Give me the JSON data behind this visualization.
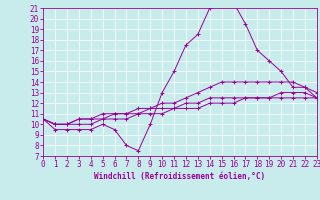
{
  "xlabel": "Windchill (Refroidissement éolien,°C)",
  "ylabel": "",
  "bg_color": "#c8ecec",
  "line_color": "#990099",
  "xmin": 0,
  "xmax": 23,
  "ymin": 7,
  "ymax": 21,
  "line1_x": [
    0,
    1,
    2,
    3,
    4,
    5,
    6,
    7,
    8,
    9,
    10,
    11,
    12,
    13,
    14,
    15,
    16,
    17,
    18,
    19,
    20,
    21,
    22,
    23
  ],
  "line1_y": [
    10.5,
    9.5,
    9.5,
    9.5,
    9.5,
    10.0,
    9.5,
    8.0,
    7.5,
    10.0,
    13.0,
    15.0,
    17.5,
    18.5,
    21.0,
    21.5,
    21.5,
    19.5,
    17.0,
    16.0,
    15.0,
    13.5,
    13.5,
    12.5
  ],
  "line2_x": [
    0,
    1,
    2,
    3,
    4,
    5,
    6,
    7,
    8,
    9,
    10,
    11,
    12,
    13,
    14,
    15,
    16,
    17,
    18,
    19,
    20,
    21,
    22,
    23
  ],
  "line2_y": [
    10.5,
    10.0,
    10.0,
    10.5,
    10.5,
    11.0,
    11.0,
    11.0,
    11.5,
    11.5,
    12.0,
    12.0,
    12.5,
    13.0,
    13.5,
    14.0,
    14.0,
    14.0,
    14.0,
    14.0,
    14.0,
    14.0,
    13.5,
    13.0
  ],
  "line3_x": [
    0,
    1,
    2,
    3,
    4,
    5,
    6,
    7,
    8,
    9,
    10,
    11,
    12,
    13,
    14,
    15,
    16,
    17,
    18,
    19,
    20,
    21,
    22,
    23
  ],
  "line3_y": [
    10.5,
    10.0,
    10.0,
    10.5,
    10.5,
    10.5,
    11.0,
    11.0,
    11.0,
    11.5,
    11.5,
    11.5,
    12.0,
    12.0,
    12.5,
    12.5,
    12.5,
    12.5,
    12.5,
    12.5,
    12.5,
    12.5,
    12.5,
    12.5
  ],
  "line4_x": [
    0,
    1,
    2,
    3,
    4,
    5,
    6,
    7,
    8,
    9,
    10,
    11,
    12,
    13,
    14,
    15,
    16,
    17,
    18,
    19,
    20,
    21,
    22,
    23
  ],
  "line4_y": [
    10.5,
    10.0,
    10.0,
    10.0,
    10.0,
    10.5,
    10.5,
    10.5,
    11.0,
    11.0,
    11.0,
    11.5,
    11.5,
    11.5,
    12.0,
    12.0,
    12.0,
    12.5,
    12.5,
    12.5,
    13.0,
    13.0,
    13.0,
    12.5
  ],
  "tick_fontsize": 5.5,
  "xlabel_fontsize": 5.5
}
